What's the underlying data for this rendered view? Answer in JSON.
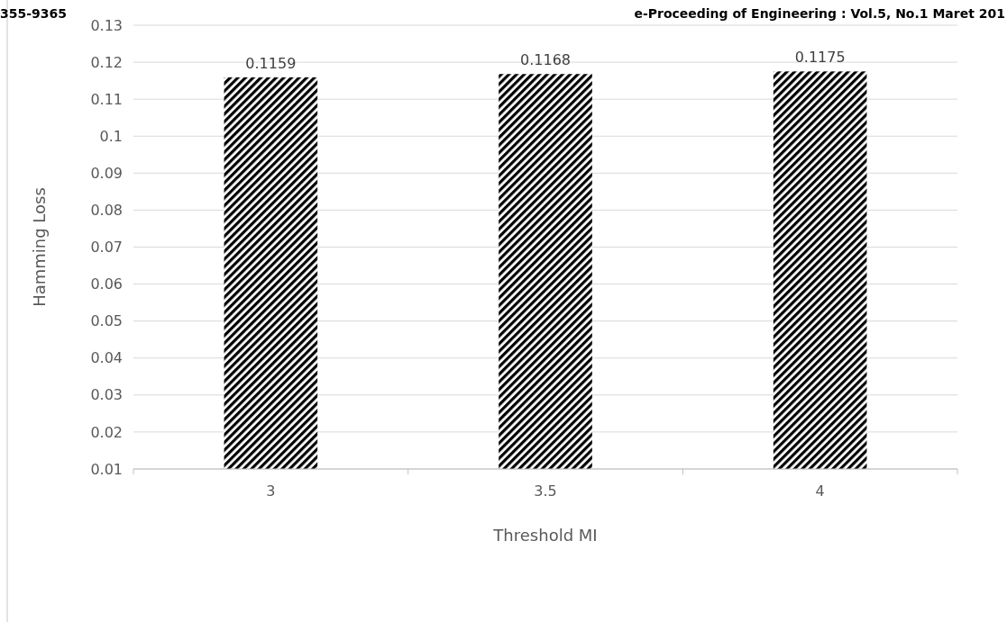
{
  "chart_data": {
    "type": "bar",
    "xlabel": "Threshold MI",
    "ylabel": "Hamming Loss",
    "annotations": [
      "355-9365",
      "e-Proceeding of Engineering : Vol.5, No.1 Maret 201"
    ],
    "categories": [
      "3",
      "3.5",
      "4"
    ],
    "values": [
      0.1159,
      0.1168,
      0.1175
    ],
    "color": "#000000",
    "ylim": [
      0.01,
      0.13
    ],
    "yticks": [
      0.01,
      0.02,
      0.03,
      0.04,
      0.05,
      0.06,
      0.07,
      0.08,
      0.09,
      0.1,
      0.11,
      0.12,
      0.13
    ],
    "grid": "y",
    "data_labels": true
  }
}
